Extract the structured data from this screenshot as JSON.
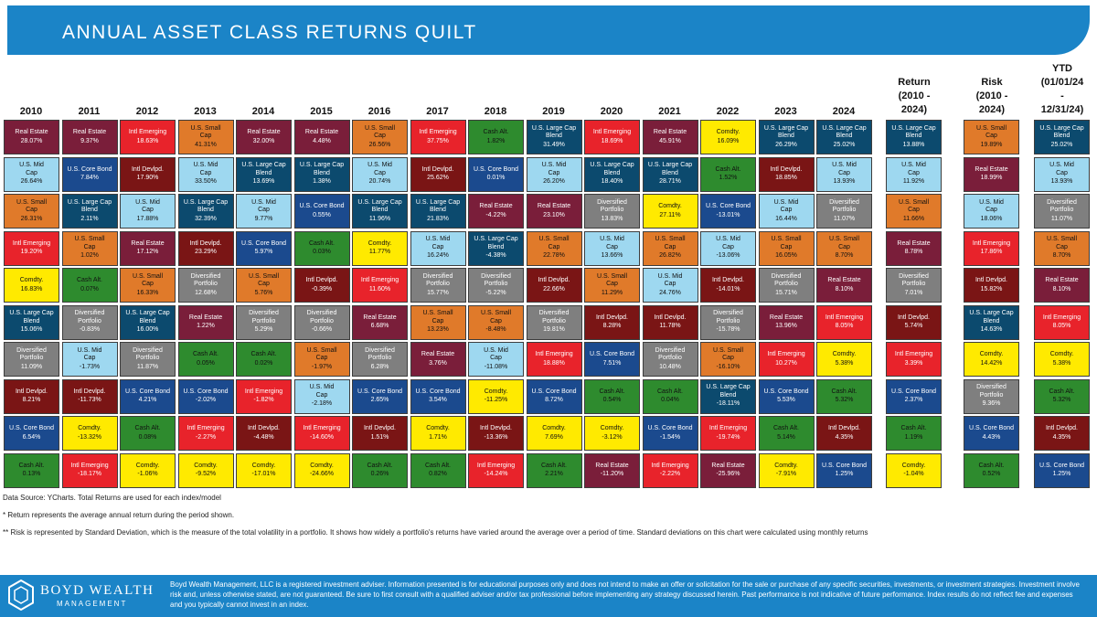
{
  "title": "ANNUAL ASSET CLASS RETURNS QUILT",
  "colors": {
    "Real Estate": "#7a1e3a",
    "U.S. Core Bond": "#1b4a8e",
    "Intl Emerging": "#e8232b",
    "U.S. Mid Cap": "#9ed8f0",
    "U.S. Small Cap": "#e07a2a",
    "Intl Devlpd.": "#7a1515",
    "U.S. Large Cap Blend": "#0c4a6e",
    "Diversified Portfolio": "#7f7f7f",
    "Cash Alt.": "#2e8b2e",
    "Comdty.": "#ffea00"
  },
  "dark_text_classes": [
    "U.S. Mid Cap",
    "U.S. Small Cap",
    "Comdty.",
    "Cash Alt."
  ],
  "chart_data": {
    "type": "table",
    "title": "ANNUAL ASSET CLASS RETURNS QUILT",
    "columns": [
      {
        "header": "2010",
        "cells": [
          {
            "asset": "Real Estate",
            "value": "28.07%"
          },
          {
            "asset": "U.S. Mid Cap",
            "value": "26.64%"
          },
          {
            "asset": "U.S. Small Cap",
            "value": "26.31%"
          },
          {
            "asset": "Intl Emerging",
            "value": "19.20%"
          },
          {
            "asset": "Comdty.",
            "value": "16.83%"
          },
          {
            "asset": "U.S. Large Cap Blend",
            "value": "15.06%"
          },
          {
            "asset": "Diversified Portfolio",
            "value": "11.09%"
          },
          {
            "asset": "Intl Devlpd.",
            "value": "8.21%"
          },
          {
            "asset": "U.S. Core Bond",
            "value": "6.54%"
          },
          {
            "asset": "Cash Alt.",
            "value": "0.13%"
          }
        ]
      },
      {
        "header": "2011",
        "cells": [
          {
            "asset": "Real Estate",
            "value": "9.37%"
          },
          {
            "asset": "U.S. Core Bond",
            "value": "7.84%"
          },
          {
            "asset": "U.S. Large Cap Blend",
            "value": "2.11%"
          },
          {
            "asset": "U.S. Small Cap",
            "value": "1.02%"
          },
          {
            "asset": "Cash Alt.",
            "value": "0.07%"
          },
          {
            "asset": "Diversified Portfolio",
            "value": "-0.83%"
          },
          {
            "asset": "U.S. Mid Cap",
            "value": "-1.73%"
          },
          {
            "asset": "Intl Devlpd.",
            "value": "-11.73%"
          },
          {
            "asset": "Comdty.",
            "value": "-13.32%"
          },
          {
            "asset": "Intl Emerging",
            "value": "-18.17%"
          }
        ]
      },
      {
        "header": "2012",
        "cells": [
          {
            "asset": "Intl Emerging",
            "value": "18.63%"
          },
          {
            "asset": "Intl Devlpd.",
            "value": "17.90%"
          },
          {
            "asset": "U.S. Mid Cap",
            "value": "17.88%"
          },
          {
            "asset": "Real Estate",
            "value": "17.12%"
          },
          {
            "asset": "U.S. Small Cap",
            "value": "16.33%"
          },
          {
            "asset": "U.S. Large Cap Blend",
            "value": "16.00%"
          },
          {
            "asset": "Diversified Portfolio",
            "value": "11.87%"
          },
          {
            "asset": "U.S. Core Bond",
            "value": "4.21%"
          },
          {
            "asset": "Cash Alt.",
            "value": "0.08%"
          },
          {
            "asset": "Comdty.",
            "value": "-1.06%"
          }
        ]
      },
      {
        "header": "2013",
        "cells": [
          {
            "asset": "U.S. Small Cap",
            "value": "41.31%"
          },
          {
            "asset": "U.S. Mid Cap",
            "value": "33.50%"
          },
          {
            "asset": "U.S. Large Cap Blend",
            "value": "32.39%"
          },
          {
            "asset": "Intl Devlpd.",
            "value": "23.29%"
          },
          {
            "asset": "Diversified Portfolio",
            "value": "12.68%"
          },
          {
            "asset": "Real Estate",
            "value": "1.22%"
          },
          {
            "asset": "Cash Alt.",
            "value": "0.05%"
          },
          {
            "asset": "U.S. Core Bond",
            "value": "-2.02%"
          },
          {
            "asset": "Intl Emerging",
            "value": "-2.27%"
          },
          {
            "asset": "Comdty.",
            "value": "-9.52%"
          }
        ]
      },
      {
        "header": "2014",
        "cells": [
          {
            "asset": "Real Estate",
            "value": "32.00%"
          },
          {
            "asset": "U.S. Large Cap Blend",
            "value": "13.69%"
          },
          {
            "asset": "U.S. Mid Cap",
            "value": "9.77%"
          },
          {
            "asset": "U.S. Core Bond",
            "value": "5.97%"
          },
          {
            "asset": "U.S. Small Cap",
            "value": "5.76%"
          },
          {
            "asset": "Diversified Portfolio",
            "value": "5.29%"
          },
          {
            "asset": "Cash Alt.",
            "value": "0.02%"
          },
          {
            "asset": "Intl Emerging",
            "value": "-1.82%"
          },
          {
            "asset": "Intl Devlpd.",
            "value": "-4.48%"
          },
          {
            "asset": "Comdty.",
            "value": "-17.01%"
          }
        ]
      },
      {
        "header": "2015",
        "cells": [
          {
            "asset": "Real Estate",
            "value": "4.48%"
          },
          {
            "asset": "U.S. Large Cap Blend",
            "value": "1.38%"
          },
          {
            "asset": "U.S. Core Bond",
            "value": "0.55%"
          },
          {
            "asset": "Cash Alt.",
            "value": "0.03%"
          },
          {
            "asset": "Intl Devlpd.",
            "value": "-0.39%"
          },
          {
            "asset": "Diversified Portfolio",
            "value": "-0.66%"
          },
          {
            "asset": "U.S. Small Cap",
            "value": "-1.97%"
          },
          {
            "asset": "U.S. Mid Cap",
            "value": "-2.18%"
          },
          {
            "asset": "Intl Emerging",
            "value": "-14.60%"
          },
          {
            "asset": "Comdty.",
            "value": "-24.66%"
          }
        ]
      },
      {
        "header": "2016",
        "cells": [
          {
            "asset": "U.S. Small Cap",
            "value": "26.56%"
          },
          {
            "asset": "U.S. Mid Cap",
            "value": "20.74%"
          },
          {
            "asset": "U.S. Large Cap Blend",
            "value": "11.96%"
          },
          {
            "asset": "Comdty.",
            "value": "11.77%"
          },
          {
            "asset": "Intl Emerging",
            "value": "11.60%"
          },
          {
            "asset": "Real Estate",
            "value": "6.68%"
          },
          {
            "asset": "Diversified Portfolio",
            "value": "6.28%"
          },
          {
            "asset": "U.S. Core Bond",
            "value": "2.65%"
          },
          {
            "asset": "Intl Devlpd.",
            "value": "1.51%"
          },
          {
            "asset": "Cash Alt.",
            "value": "0.26%"
          }
        ]
      },
      {
        "header": "2017",
        "cells": [
          {
            "asset": "Intl Emerging",
            "value": "37.75%"
          },
          {
            "asset": "Intl Devlpd.",
            "value": "25.62%"
          },
          {
            "asset": "U.S. Large Cap Blend",
            "value": "21.83%"
          },
          {
            "asset": "U.S. Mid Cap",
            "value": "16.24%"
          },
          {
            "asset": "Diversified Portfolio",
            "value": "15.77%"
          },
          {
            "asset": "U.S. Small Cap",
            "value": "13.23%"
          },
          {
            "asset": "Real Estate",
            "value": "3.76%"
          },
          {
            "asset": "U.S. Core Bond",
            "value": "3.54%"
          },
          {
            "asset": "Comdty.",
            "value": "1.71%"
          },
          {
            "asset": "Cash Alt.",
            "value": "0.82%"
          }
        ]
      },
      {
        "header": "2018",
        "cells": [
          {
            "asset": "Cash Alt.",
            "value": "1.82%"
          },
          {
            "asset": "U.S. Core Bond",
            "value": "0.01%"
          },
          {
            "asset": "Real Estate",
            "value": "-4.22%"
          },
          {
            "asset": "U.S. Large Cap Blend",
            "value": "-4.38%"
          },
          {
            "asset": "Diversified Portfolio",
            "value": "-5.22%"
          },
          {
            "asset": "U.S. Small Cap",
            "value": "-8.48%"
          },
          {
            "asset": "U.S. Mid Cap",
            "value": "-11.08%"
          },
          {
            "asset": "Comdty.",
            "value": "-11.25%"
          },
          {
            "asset": "Intl Devlpd.",
            "value": "-13.36%"
          },
          {
            "asset": "Intl Emerging",
            "value": "-14.24%"
          }
        ]
      },
      {
        "header": "2019",
        "cells": [
          {
            "asset": "U.S. Large Cap Blend",
            "value": "31.49%"
          },
          {
            "asset": "U.S. Mid Cap",
            "value": "26.20%"
          },
          {
            "asset": "Real Estate",
            "value": "23.10%"
          },
          {
            "asset": "U.S. Small Cap",
            "value": "22.78%"
          },
          {
            "asset": "Intl Devlpd.",
            "value": "22.66%"
          },
          {
            "asset": "Diversified Portfolio",
            "value": "19.81%"
          },
          {
            "asset": "Intl Emerging",
            "value": "18.88%"
          },
          {
            "asset": "U.S. Core Bond",
            "value": "8.72%"
          },
          {
            "asset": "Comdty.",
            "value": "7.69%"
          },
          {
            "asset": "Cash Alt.",
            "value": "2.21%"
          }
        ]
      },
      {
        "header": "2020",
        "cells": [
          {
            "asset": "Intl Emerging",
            "value": "18.69%"
          },
          {
            "asset": "U.S. Large Cap Blend",
            "value": "18.40%"
          },
          {
            "asset": "Diversified Portfolio",
            "value": "13.83%"
          },
          {
            "asset": "U.S. Mid Cap",
            "value": "13.66%"
          },
          {
            "asset": "U.S. Small Cap",
            "value": "11.29%"
          },
          {
            "asset": "Intl Devlpd.",
            "value": "8.28%"
          },
          {
            "asset": "U.S. Core Bond",
            "value": "7.51%"
          },
          {
            "asset": "Cash Alt.",
            "value": "0.54%"
          },
          {
            "asset": "Comdty.",
            "value": "-3.12%"
          },
          {
            "asset": "Real Estate",
            "value": "-11.20%"
          }
        ]
      },
      {
        "header": "2021",
        "cells": [
          {
            "asset": "Real Estate",
            "value": "45.91%"
          },
          {
            "asset": "U.S. Large Cap Blend",
            "value": "28.71%"
          },
          {
            "asset": "Comdty.",
            "value": "27.11%"
          },
          {
            "asset": "U.S. Small Cap",
            "value": "26.82%"
          },
          {
            "asset": "U.S. Mid Cap",
            "value": "24.76%"
          },
          {
            "asset": "Intl Devlpd.",
            "value": "11.78%"
          },
          {
            "asset": "Diversified Portfolio",
            "value": "10.48%"
          },
          {
            "asset": "Cash Alt.",
            "value": "0.04%"
          },
          {
            "asset": "U.S. Core Bond",
            "value": "-1.54%"
          },
          {
            "asset": "Intl Emerging",
            "value": "-2.22%"
          }
        ]
      },
      {
        "header": "2022",
        "cells": [
          {
            "asset": "Comdty.",
            "value": "16.09%"
          },
          {
            "asset": "Cash Alt.",
            "value": "1.52%"
          },
          {
            "asset": "U.S. Core Bond",
            "value": "-13.01%"
          },
          {
            "asset": "U.S. Mid Cap",
            "value": "-13.06%"
          },
          {
            "asset": "Intl Devlpd.",
            "value": "-14.01%"
          },
          {
            "asset": "Diversified Portfolio",
            "value": "-15.78%"
          },
          {
            "asset": "U.S. Small Cap",
            "value": "-16.10%"
          },
          {
            "asset": "U.S. Large Cap Blend",
            "value": "-18.11%"
          },
          {
            "asset": "Intl Emerging",
            "value": "-19.74%"
          },
          {
            "asset": "Real Estate",
            "value": "-25.96%"
          }
        ]
      },
      {
        "header": "2023",
        "cells": [
          {
            "asset": "U.S. Large Cap Blend",
            "value": "26.29%"
          },
          {
            "asset": "Intl Devlpd.",
            "value": "18.85%"
          },
          {
            "asset": "U.S. Mid Cap",
            "value": "16.44%"
          },
          {
            "asset": "U.S. Small Cap",
            "value": "16.05%"
          },
          {
            "asset": "Diversified Portfolio",
            "value": "15.71%"
          },
          {
            "asset": "Real Estate",
            "value": "13.96%"
          },
          {
            "asset": "Intl Emerging",
            "value": "10.27%"
          },
          {
            "asset": "U.S. Core Bond",
            "value": "5.53%"
          },
          {
            "asset": "Cash Alt.",
            "value": "5.14%"
          },
          {
            "asset": "Comdty.",
            "value": "-7.91%"
          }
        ]
      },
      {
        "header": "2024",
        "cells": [
          {
            "asset": "U.S. Large Cap Blend",
            "value": "25.02%"
          },
          {
            "asset": "U.S. Mid Cap",
            "value": "13.93%"
          },
          {
            "asset": "Diversified Portfolio",
            "value": "11.07%"
          },
          {
            "asset": "U.S. Small Cap",
            "value": "8.70%"
          },
          {
            "asset": "Real Estate",
            "value": "8.10%"
          },
          {
            "asset": "Intl Emerging",
            "value": "8.05%"
          },
          {
            "asset": "Comdty.",
            "value": "5.38%"
          },
          {
            "asset": "Cash Alt.",
            "value": "5.32%"
          },
          {
            "asset": "Intl Devlpd.",
            "value": "4.35%"
          },
          {
            "asset": "U.S. Core Bond",
            "value": "1.25%"
          }
        ]
      }
    ],
    "metric_columns": [
      {
        "header": "Return\n(2010 -\n2024)",
        "cells": [
          {
            "asset": "U.S. Large Cap Blend",
            "value": "13.88%"
          },
          {
            "asset": "U.S. Mid Cap",
            "value": "11.92%"
          },
          {
            "asset": "U.S. Small Cap",
            "value": "11.66%"
          },
          {
            "asset": "Real Estate",
            "value": "8.78%"
          },
          {
            "asset": "Diversified Portfolio",
            "value": "7.01%"
          },
          {
            "asset": "Intl Devlpd.",
            "value": "5.74%"
          },
          {
            "asset": "Intl Emerging",
            "value": "3.39%"
          },
          {
            "asset": "U.S. Core Bond",
            "value": "2.37%"
          },
          {
            "asset": "Cash Alt.",
            "value": "1.19%"
          },
          {
            "asset": "Comdty.",
            "value": "-1.04%"
          }
        ]
      },
      {
        "header": "Risk\n(2010 -\n2024)",
        "cells": [
          {
            "asset": "U.S. Small Cap",
            "value": "19.89%"
          },
          {
            "asset": "Real Estate",
            "value": "18.99%"
          },
          {
            "asset": "U.S. Mid Cap",
            "value": "18.06%"
          },
          {
            "asset": "Intl Emerging",
            "value": "17.86%"
          },
          {
            "asset": "Intl Devlpd.",
            "value": "15.82%"
          },
          {
            "asset": "U.S. Large Cap Blend",
            "value": "14.63%"
          },
          {
            "asset": "Comdty.",
            "value": "14.42%"
          },
          {
            "asset": "Diversified Portfolio",
            "value": "9.36%"
          },
          {
            "asset": "U.S. Core Bond",
            "value": "4.43%"
          },
          {
            "asset": "Cash Alt.",
            "value": "0.52%"
          }
        ]
      },
      {
        "header": "YTD\n(01/01/24\n-\n12/31/24)",
        "cells": [
          {
            "asset": "U.S. Large Cap Blend",
            "value": "25.02%"
          },
          {
            "asset": "U.S. Mid Cap",
            "value": "13.93%"
          },
          {
            "asset": "Diversified Portfolio",
            "value": "11.07%"
          },
          {
            "asset": "U.S. Small Cap",
            "value": "8.70%"
          },
          {
            "asset": "Real Estate",
            "value": "8.10%"
          },
          {
            "asset": "Intl Emerging",
            "value": "8.05%"
          },
          {
            "asset": "Comdty.",
            "value": "5.38%"
          },
          {
            "asset": "Cash Alt.",
            "value": "5.32%"
          },
          {
            "asset": "Intl Devlpd.",
            "value": "4.35%"
          },
          {
            "asset": "U.S. Core Bond",
            "value": "1.25%"
          }
        ]
      }
    ]
  },
  "notes": {
    "source": "Data Source: YCharts. Total Returns are used for each index/model",
    "return_note": "* Return represents the average annual return during the period shown.",
    "risk_note": "** Risk is represented by Standard Deviation, which is the measure of the total volatility in a portfolio. It shows how widely a portfolio's returns have varied around the average over a period of time. Standard deviations on this chart were calculated using monthly returns"
  },
  "footer": {
    "logo_name": "BOYD WEALTH",
    "logo_sub": "MANAGEMENT",
    "disclaimer": "Boyd Wealth Management, LLC is a registered investment adviser. Information presented is for educational purposes only and does not intend to make an offer or solicitation for the sale or purchase of any specific securities, investments, or investment strategies. Investment involve risk and, unless otherwise stated, are not guaranteed. Be sure to first consult with a qualified adviser and/or tax professional before implementing any strategy discussed herein. Past performance is not indicative of future performance. Index results do not reflect fee and expenses and you typically cannot invest in an index."
  }
}
